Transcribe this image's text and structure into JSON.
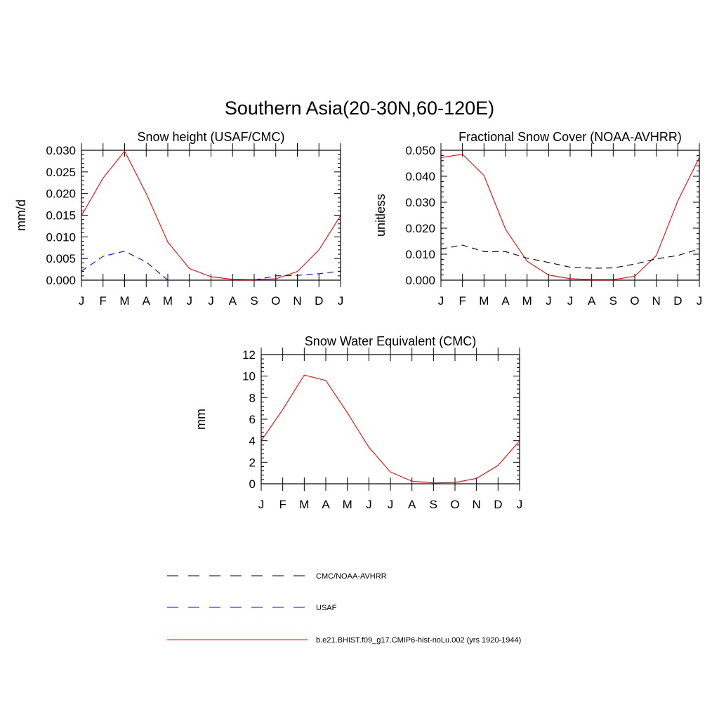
{
  "figure": {
    "title": "Southern Asia(20-30N,60-120E)"
  },
  "months": [
    "J",
    "F",
    "M",
    "A",
    "M",
    "J",
    "J",
    "A",
    "S",
    "O",
    "N",
    "D",
    "J"
  ],
  "colors": {
    "model": "#ff0000",
    "usaf": "#0000ff",
    "obs": "#000000"
  },
  "legend": [
    {
      "label": "CMC/NOAA-AVHRR",
      "color": "#000000",
      "style": "dashed"
    },
    {
      "label": "USAF",
      "color": "#0000ff",
      "style": "dashed"
    },
    {
      "label": "b.e21.BHIST.f09_g17.CMIP6-hist-noLu.002 (yrs 1920-1944)",
      "color": "#ff0000",
      "style": "solid"
    }
  ],
  "chart_data": [
    {
      "type": "line",
      "title": "Snow height (USAF/CMC)",
      "ylabel": "mm/d",
      "xlabel": "",
      "ylim": [
        0,
        0.03
      ],
      "yticks": [
        "0.000",
        "0.005",
        "0.010",
        "0.015",
        "0.020",
        "0.025",
        "0.030"
      ],
      "series": [
        {
          "name": "b.e21.BHIST.f09_g17.CMIP6-hist-noLu.002 (yrs 1920-1944)",
          "style": "solid",
          "color": "#ff0000",
          "values": [
            0.0149,
            0.0236,
            0.0298,
            0.02,
            0.0088,
            0.0027,
            0.0008,
            0.0002,
            0.0001,
            0.0003,
            0.002,
            0.007,
            0.0149
          ]
        },
        {
          "name": "USAF",
          "style": "dashed",
          "color": "#0000ff",
          "values": [
            0.0021,
            0.0055,
            0.0067,
            0.0042,
            0.0,
            null,
            null,
            null,
            0.0,
            0.001,
            0.0011,
            0.0015,
            0.0021
          ]
        }
      ]
    },
    {
      "type": "line",
      "title": "Fractional Snow Cover (NOAA-AVHRR)",
      "ylabel": "unitless",
      "xlabel": "",
      "ylim": [
        0,
        0.05
      ],
      "yticks": [
        "0.000",
        "0.010",
        "0.020",
        "0.030",
        "0.040",
        "0.050"
      ],
      "series": [
        {
          "name": "b.e21.BHIST.f09_g17.CMIP6-hist-noLu.002 (yrs 1920-1944)",
          "style": "solid",
          "color": "#ff0000",
          "values": [
            0.0472,
            0.0485,
            0.0403,
            0.0196,
            0.0073,
            0.002,
            0.0006,
            0.0002,
            0.0002,
            0.0015,
            0.0095,
            0.0305,
            0.0472
          ]
        },
        {
          "name": "CMC/NOAA-AVHRR",
          "style": "dashed",
          "color": "#000000",
          "values": [
            0.012,
            0.0135,
            0.011,
            0.011,
            0.0085,
            0.0068,
            0.005,
            0.0046,
            0.0047,
            0.0062,
            0.0082,
            0.0095,
            0.012
          ]
        }
      ]
    },
    {
      "type": "line",
      "title": "Snow Water Equivalent (CMC)",
      "ylabel": "mm",
      "xlabel": "",
      "ylim": [
        0,
        12
      ],
      "yticks": [
        "0",
        "2",
        "4",
        "6",
        "8",
        "10",
        "12"
      ],
      "series": [
        {
          "name": "b.e21.BHIST.f09_g17.CMIP6-hist-noLu.002 (yrs 1920-1944)",
          "style": "solid",
          "color": "#ff0000",
          "values": [
            4.0,
            6.9,
            10.1,
            9.6,
            6.6,
            3.4,
            1.1,
            0.25,
            0.08,
            0.12,
            0.5,
            1.7,
            4.0
          ]
        },
        {
          "name": "CMC/NOAA-AVHRR",
          "style": "dashed",
          "color": "#000000",
          "values": [
            0,
            0,
            0,
            0,
            0,
            0,
            0,
            0,
            0,
            0,
            0,
            0,
            0
          ]
        }
      ]
    }
  ]
}
